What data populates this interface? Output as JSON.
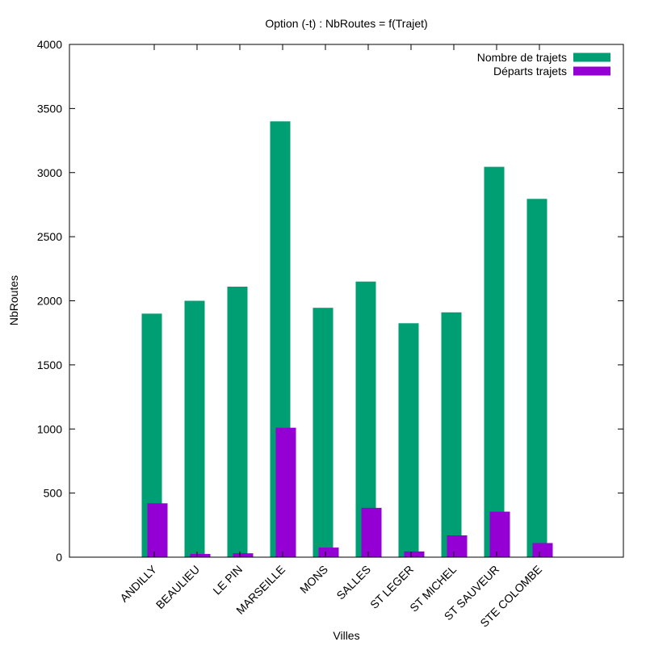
{
  "chart_data": {
    "type": "bar",
    "title": "Option (-t) : NbRoutes = f(Trajet)",
    "xlabel": "Villes",
    "ylabel": "NbRoutes",
    "ylim": [
      0,
      4000
    ],
    "yticks": [
      0,
      500,
      1000,
      1500,
      2000,
      2500,
      3000,
      3500,
      4000
    ],
    "grid": false,
    "legend_position": "top-right",
    "categories": [
      "ANDILLY",
      "BEAULIEU",
      "LE PIN",
      "MARSEILLE",
      "MONS",
      "SALLES",
      "ST LEGER",
      "ST MICHEL",
      "ST SAUVEUR",
      "STE COLOMBE"
    ],
    "series": [
      {
        "name": "Nombre de trajets",
        "color": "#009e73",
        "values": [
          1900,
          2000,
          2110,
          3400,
          1945,
          2150,
          1825,
          1910,
          3045,
          2795
        ]
      },
      {
        "name": "Départs trajets",
        "color": "#9400d3",
        "values": [
          420,
          25,
          30,
          1010,
          75,
          385,
          45,
          170,
          355,
          110
        ]
      }
    ]
  }
}
